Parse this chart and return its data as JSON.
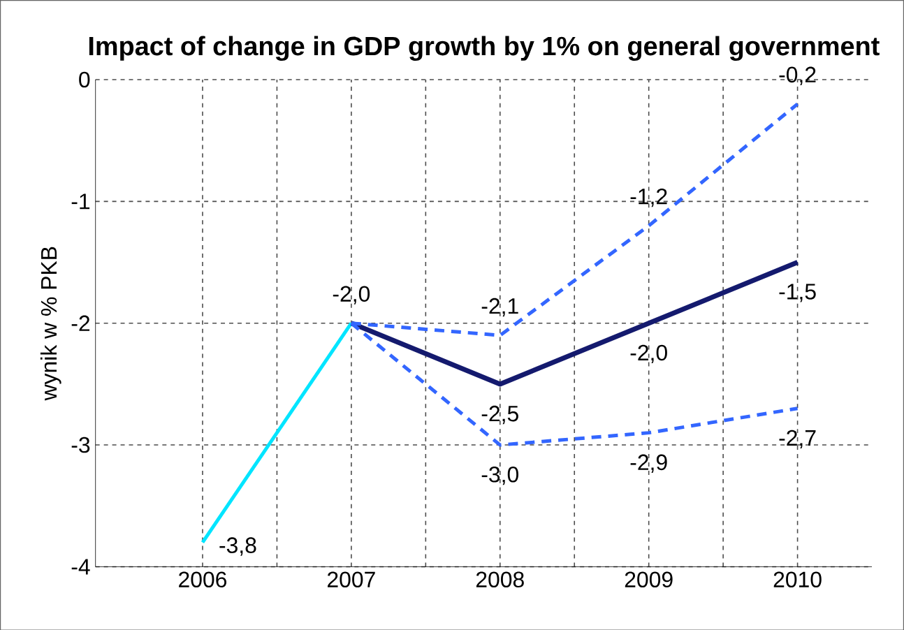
{
  "chart_data": {
    "type": "line",
    "title": "Impact of change in GDP growth by 1% on general government",
    "ylabel": "wynik w % PKB",
    "categories": [
      "2006",
      "2007",
      "2008",
      "2009",
      "2010"
    ],
    "ylim": [
      -4,
      0
    ],
    "yticks": [
      0,
      -1,
      -2,
      -3,
      -4
    ],
    "grid": true,
    "marker": "none",
    "series": [
      {
        "color": "#00e5ff",
        "line_style": "solid",
        "values": [
          -3.8,
          -2.0,
          null,
          null,
          null
        ],
        "value_labels": [
          "-3,8",
          "-2,0",
          null,
          null,
          null
        ]
      },
      {
        "color": "#141a6e",
        "line_style": "solid",
        "values": [
          null,
          -2.0,
          -2.5,
          -2.0,
          -1.5
        ],
        "value_labels": [
          null,
          null,
          "-2,5",
          "-2,0",
          "-1,5"
        ]
      },
      {
        "color": "#3366ff",
        "line_style": "dashed",
        "values": [
          null,
          -2.0,
          -2.1,
          -1.2,
          -0.2
        ],
        "value_labels": [
          null,
          null,
          "-2,1",
          "-1,2",
          "-0,2"
        ]
      },
      {
        "color": "#3366ff",
        "line_style": "dashed",
        "values": [
          null,
          -2.0,
          -3.0,
          -2.9,
          -2.7
        ],
        "value_labels": [
          null,
          null,
          "-3,0",
          "-2,9",
          "-2,7"
        ]
      }
    ]
  }
}
